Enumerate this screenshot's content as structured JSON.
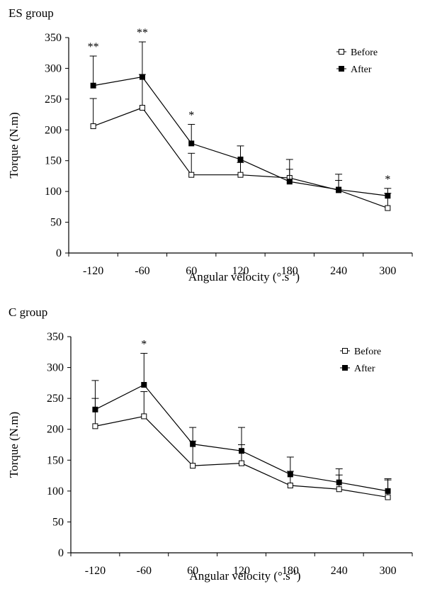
{
  "chart_data": [
    {
      "type": "line",
      "panel_label": "ES group",
      "xlabel": "Angular velocity (°.s",
      "xlabel_sup": "-1",
      "xlabel_close": ")",
      "ylabel": "Torque (N.m)",
      "categories": [
        "-120",
        "-60",
        "60",
        "120",
        "180",
        "240",
        "300"
      ],
      "ylim": [
        0,
        350
      ],
      "yticks": [
        0,
        50,
        100,
        150,
        200,
        250,
        300,
        350
      ],
      "grid": false,
      "legend_position": "top-right",
      "series": [
        {
          "name": "Before",
          "marker": "open-square",
          "values": [
            206,
            236,
            127,
            127,
            122,
            102,
            73
          ],
          "error": [
            45,
            54,
            35,
            20,
            30,
            26,
            24
          ]
        },
        {
          "name": "After",
          "marker": "filled-square",
          "values": [
            272,
            286,
            178,
            152,
            116,
            103,
            93
          ],
          "error": [
            48,
            57,
            31,
            22,
            20,
            15,
            12
          ]
        }
      ],
      "significance": [
        "**",
        "**",
        "*",
        "",
        "",
        "",
        "*"
      ]
    },
    {
      "type": "line",
      "panel_label": "C group",
      "xlabel": "Angular velocity (°.s",
      "xlabel_sup": "-1",
      "xlabel_close": ")",
      "ylabel": "Torque (N.m)",
      "categories": [
        "-120",
        "-60",
        "60",
        "120",
        "180",
        "240",
        "300"
      ],
      "ylim": [
        0,
        350
      ],
      "yticks": [
        0,
        50,
        100,
        150,
        200,
        250,
        300,
        350
      ],
      "grid": false,
      "legend_position": "top-right",
      "series": [
        {
          "name": "Before",
          "marker": "open-square",
          "values": [
            205,
            221,
            141,
            145,
            109,
            103,
            90
          ],
          "error": [
            45,
            40,
            40,
            30,
            23,
            23,
            28
          ]
        },
        {
          "name": "After",
          "marker": "filled-square",
          "values": [
            232,
            272,
            176,
            165,
            127,
            114,
            100
          ],
          "error": [
            47,
            51,
            27,
            38,
            28,
            22,
            20
          ]
        }
      ],
      "significance": [
        "",
        "*",
        "",
        "",
        "",
        "",
        ""
      ]
    }
  ]
}
